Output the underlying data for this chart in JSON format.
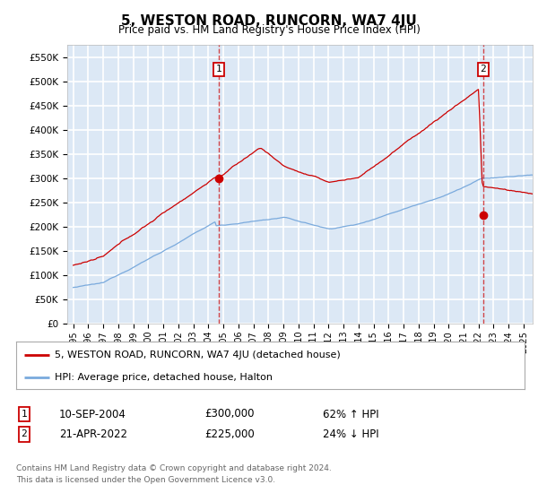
{
  "title": "5, WESTON ROAD, RUNCORN, WA7 4JU",
  "subtitle": "Price paid vs. HM Land Registry's House Price Index (HPI)",
  "plot_bg_color": "#dce8f5",
  "grid_color": "#ffffff",
  "hpi_color": "#7aaadd",
  "price_color": "#cc0000",
  "ylim": [
    0,
    575000
  ],
  "yticks": [
    0,
    50000,
    100000,
    150000,
    200000,
    250000,
    300000,
    350000,
    400000,
    450000,
    500000,
    550000
  ],
  "ytick_labels": [
    "£0",
    "£50K",
    "£100K",
    "£150K",
    "£200K",
    "£250K",
    "£300K",
    "£350K",
    "£400K",
    "£450K",
    "£500K",
    "£550K"
  ],
  "sale1_year": 2004.7,
  "sale1_price": 300000,
  "sale2_year": 2022.3,
  "sale2_price": 225000,
  "legend_price_label": "5, WESTON ROAD, RUNCORN, WA7 4JU (detached house)",
  "legend_hpi_label": "HPI: Average price, detached house, Halton",
  "row1_num": "1",
  "row1_date": "10-SEP-2004",
  "row1_price": "£300,000",
  "row1_pct": "62% ↑ HPI",
  "row2_num": "2",
  "row2_date": "21-APR-2022",
  "row2_price": "£225,000",
  "row2_pct": "24% ↓ HPI",
  "footer_line1": "Contains HM Land Registry data © Crown copyright and database right 2024.",
  "footer_line2": "This data is licensed under the Open Government Licence v3.0."
}
